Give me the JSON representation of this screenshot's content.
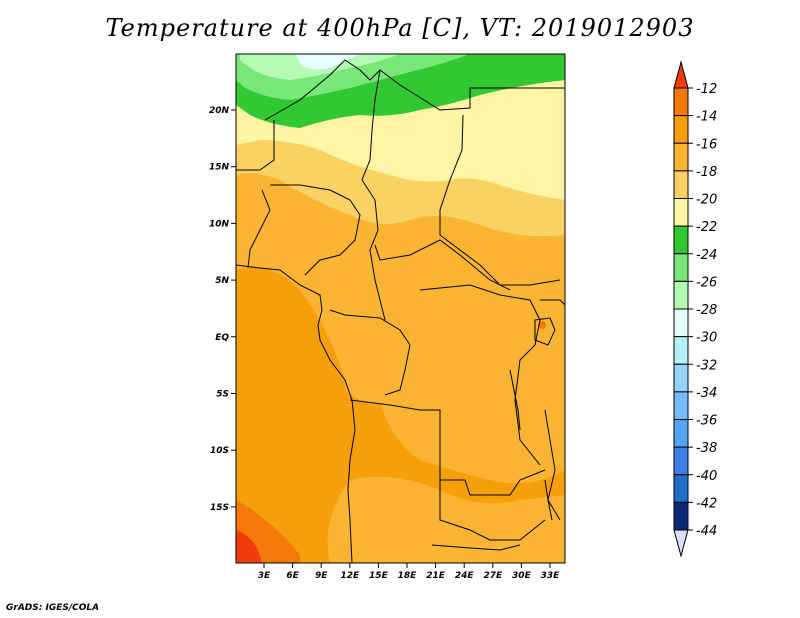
{
  "title": "Temperature at 400hPa [C], VT: 2019012903",
  "credit": "GrADS: IGES/COLA",
  "map": {
    "lat_ticks": [
      "20N",
      "15N",
      "10N",
      "5N",
      "EQ",
      "5S",
      "10S",
      "15S"
    ],
    "lon_ticks": [
      "3E",
      "6E",
      "9E",
      "12E",
      "15E",
      "18E",
      "21E",
      "24E",
      "27E",
      "30E",
      "33E"
    ]
  },
  "colorbar": {
    "labels": [
      "-12",
      "-14",
      "-16",
      "-18",
      "-20",
      "-22",
      "-24",
      "-26",
      "-28",
      "-30",
      "-32",
      "-34",
      "-36",
      "-38",
      "-40",
      "-42",
      "-44"
    ],
    "colors": [
      "#f03c0a",
      "#f5780a",
      "#f5a00a",
      "#fab432",
      "#fad264",
      "#fff5a5",
      "#32c832",
      "#78e678",
      "#b4fab4",
      "#e6ffff",
      "#b4f0fa",
      "#96d2fa",
      "#78b9fa",
      "#50a5f5",
      "#3c82e6",
      "#1e6ec8",
      "#0a2878",
      "#dcdcff"
    ]
  }
}
